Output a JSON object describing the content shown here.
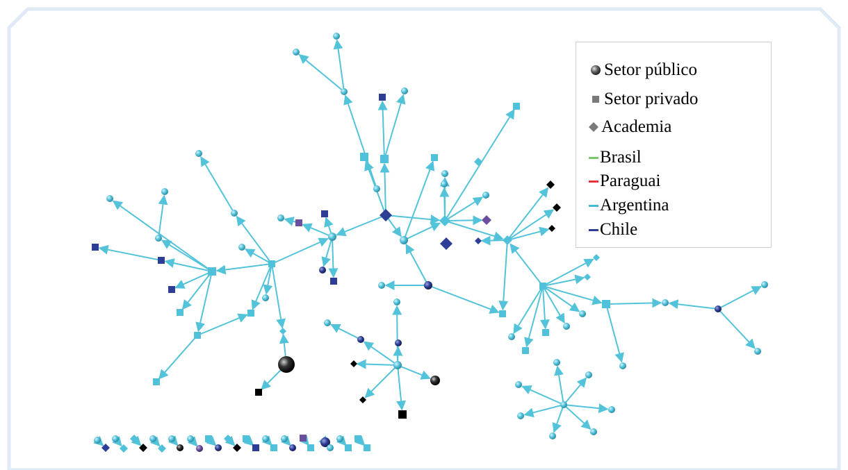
{
  "legend": {
    "entities": [
      {
        "label": "Setor público",
        "shape": "sphere",
        "color": "#666666"
      },
      {
        "label": "Setor privado",
        "shape": "square",
        "color": "#777777"
      },
      {
        "label": "Academia",
        "shape": "diamond",
        "color": "#777777"
      }
    ],
    "countries": [
      {
        "label": "Brasil",
        "color": "#7bc66a"
      },
      {
        "label": "Paraguai",
        "color": "#e8313b"
      },
      {
        "label": "Argentina",
        "color": "#40bcd8"
      },
      {
        "label": "Chile",
        "color": "#2e3d8f"
      }
    ]
  },
  "colors": {
    "edge": "#53c3da",
    "argentina": "#4fc1da",
    "chile": "#2e3d96",
    "purple": "#6c4e9e",
    "other": "#000000",
    "frame": "#dfeaf6"
  }
}
